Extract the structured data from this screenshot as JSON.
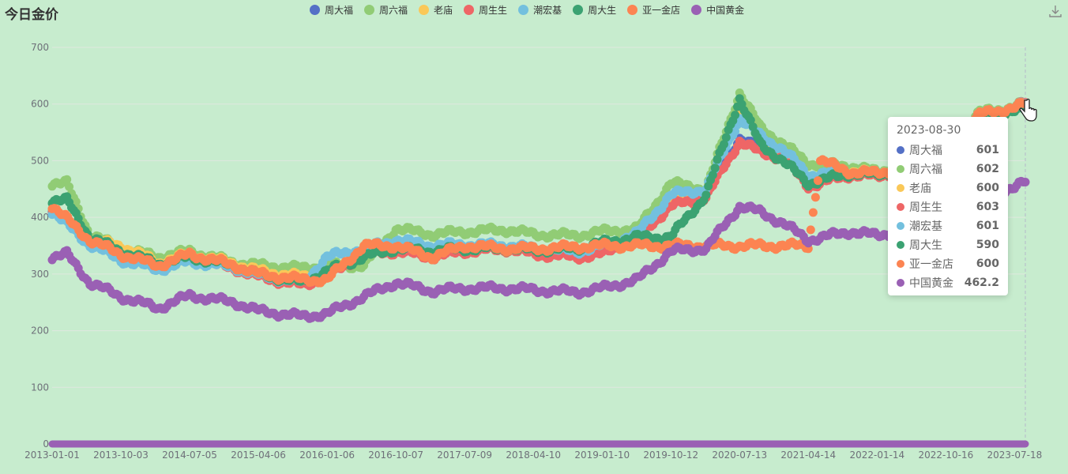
{
  "chart_data": {
    "type": "scatter",
    "title": "今日金价",
    "x_ticks": [
      "2013-01-01",
      "2013-10-03",
      "2014-07-05",
      "2015-04-06",
      "2016-01-06",
      "2016-10-07",
      "2017-07-09",
      "2018-04-10",
      "2019-01-10",
      "2019-10-12",
      "2020-07-13",
      "2021-04-14",
      "2022-01-14",
      "2022-10-16",
      "2023-07-18"
    ],
    "xlim": [
      "2013-01-01",
      "2023-08-30"
    ],
    "ylim": [
      0,
      700
    ],
    "y_ticks": [
      0,
      100,
      200,
      300,
      400,
      500,
      600,
      700
    ],
    "grid": true,
    "legend_position": "top",
    "series": [
      {
        "name": "周大福",
        "color": "#5470c6",
        "points": [
          [
            "2013-01-01",
            415
          ],
          [
            "2013-06-01",
            365
          ],
          [
            "2013-10-03",
            335
          ],
          [
            "2014-03-01",
            315
          ],
          [
            "2014-07-05",
            330
          ],
          [
            "2015-01-01",
            315
          ],
          [
            "2015-04-06",
            300
          ],
          [
            "2015-10-01",
            290
          ],
          [
            "2016-01-06",
            300
          ],
          [
            "2016-06-01",
            340
          ],
          [
            "2016-10-07",
            345
          ],
          [
            "2017-03-01",
            335
          ],
          [
            "2017-07-09",
            345
          ],
          [
            "2018-01-01",
            348
          ],
          [
            "2018-04-10",
            340
          ],
          [
            "2018-10-01",
            335
          ],
          [
            "2019-01-10",
            340
          ],
          [
            "2019-06-01",
            370
          ],
          [
            "2019-10-12",
            425
          ],
          [
            "2020-03-01",
            440
          ],
          [
            "2020-07-13",
            540
          ],
          [
            "2020-10-01",
            520
          ],
          [
            "2021-01-01",
            510
          ],
          [
            "2021-04-14",
            465
          ],
          [
            "2021-10-01",
            480
          ],
          [
            "2022-01-14",
            475
          ],
          [
            "2022-06-01",
            490
          ],
          [
            "2022-10-16",
            520
          ],
          [
            "2023-03-01",
            580
          ],
          [
            "2023-07-18",
            592
          ],
          [
            "2023-08-30",
            601
          ]
        ]
      },
      {
        "name": "周六福",
        "color": "#91cc75",
        "points": [
          [
            "2013-01-01",
            460
          ],
          [
            "2013-03-01",
            460
          ],
          [
            "2013-06-01",
            370
          ],
          [
            "2013-10-03",
            345
          ],
          [
            "2014-03-01",
            330
          ],
          [
            "2014-07-05",
            340
          ],
          [
            "2015-01-01",
            320
          ],
          [
            "2015-04-06",
            315
          ],
          [
            "2015-10-01",
            310
          ],
          [
            "2016-01-06",
            315
          ],
          [
            "2016-06-01",
            315
          ],
          [
            "2016-10-07",
            380
          ],
          [
            "2017-03-01",
            370
          ],
          [
            "2017-07-09",
            375
          ],
          [
            "2018-01-01",
            378
          ],
          [
            "2018-04-10",
            370
          ],
          [
            "2018-10-01",
            368
          ],
          [
            "2019-01-10",
            375
          ],
          [
            "2019-06-01",
            380
          ],
          [
            "2019-10-12",
            460
          ],
          [
            "2020-03-01",
            450
          ],
          [
            "2020-07-13",
            620
          ],
          [
            "2020-10-01",
            560
          ],
          [
            "2021-01-01",
            530
          ],
          [
            "2021-04-14",
            495
          ],
          [
            "2021-10-01",
            490
          ],
          [
            "2022-01-14",
            480
          ],
          [
            "2022-06-01",
            495
          ],
          [
            "2022-10-16",
            530
          ],
          [
            "2023-03-01",
            585
          ],
          [
            "2023-07-18",
            595
          ],
          [
            "2023-08-30",
            602
          ]
        ]
      },
      {
        "name": "老庙",
        "color": "#fac858",
        "points": [
          [
            "2013-01-01",
            420
          ],
          [
            "2013-06-01",
            360
          ],
          [
            "2013-10-03",
            350
          ],
          [
            "2014-03-01",
            320
          ],
          [
            "2014-07-05",
            335
          ],
          [
            "2015-01-01",
            318
          ],
          [
            "2015-04-06",
            305
          ],
          [
            "2015-10-01",
            295
          ],
          [
            "2016-01-06",
            300
          ],
          [
            "2016-06-01",
            340
          ],
          [
            "2016-10-07",
            350
          ],
          [
            "2017-03-01",
            338
          ],
          [
            "2017-07-09",
            350
          ],
          [
            "2018-01-01",
            350
          ],
          [
            "2018-04-10",
            342
          ],
          [
            "2018-10-01",
            338
          ],
          [
            "2019-01-10",
            345
          ],
          [
            "2019-06-01",
            372
          ],
          [
            "2019-10-12",
            430
          ],
          [
            "2020-03-01",
            445
          ],
          [
            "2020-07-13",
            590
          ],
          [
            "2020-10-01",
            540
          ],
          [
            "2021-01-01",
            515
          ],
          [
            "2021-04-14",
            470
          ],
          [
            "2021-10-01",
            482
          ],
          [
            "2022-01-14",
            478
          ],
          [
            "2022-06-01",
            492
          ],
          [
            "2022-10-16",
            522
          ],
          [
            "2023-03-01",
            582
          ],
          [
            "2023-07-18",
            594
          ],
          [
            "2023-08-30",
            600
          ]
        ]
      },
      {
        "name": "周生生",
        "color": "#ee6666",
        "points": [
          [
            "2013-01-01",
            412
          ],
          [
            "2013-06-01",
            355
          ],
          [
            "2013-10-03",
            330
          ],
          [
            "2014-03-01",
            310
          ],
          [
            "2014-07-05",
            325
          ],
          [
            "2015-01-01",
            310
          ],
          [
            "2015-04-06",
            295
          ],
          [
            "2015-10-01",
            280
          ],
          [
            "2016-01-06",
            295
          ],
          [
            "2016-06-01",
            335
          ],
          [
            "2016-10-07",
            340
          ],
          [
            "2017-03-01",
            330
          ],
          [
            "2017-07-09",
            340
          ],
          [
            "2018-01-01",
            344
          ],
          [
            "2018-04-10",
            335
          ],
          [
            "2018-10-01",
            330
          ],
          [
            "2019-01-10",
            335
          ],
          [
            "2019-06-01",
            365
          ],
          [
            "2019-10-12",
            420
          ],
          [
            "2020-03-01",
            435
          ],
          [
            "2020-07-13",
            535
          ],
          [
            "2020-10-01",
            515
          ],
          [
            "2021-01-01",
            505
          ],
          [
            "2021-04-14",
            455
          ],
          [
            "2021-10-01",
            475
          ],
          [
            "2022-01-14",
            472
          ],
          [
            "2022-06-01",
            488
          ],
          [
            "2022-10-16",
            518
          ],
          [
            "2023-03-01",
            580
          ],
          [
            "2023-07-18",
            593
          ],
          [
            "2023-08-30",
            603
          ]
        ]
      },
      {
        "name": "潮宏基",
        "color": "#73c0de",
        "points": [
          [
            "2013-01-01",
            410
          ],
          [
            "2013-06-01",
            352
          ],
          [
            "2013-10-03",
            325
          ],
          [
            "2014-03-01",
            308
          ],
          [
            "2014-07-05",
            322
          ],
          [
            "2015-01-01",
            312
          ],
          [
            "2015-04-06",
            298
          ],
          [
            "2015-10-01",
            285
          ],
          [
            "2016-01-06",
            330
          ],
          [
            "2016-06-01",
            345
          ],
          [
            "2016-10-07",
            360
          ],
          [
            "2017-03-01",
            350
          ],
          [
            "2017-07-09",
            352
          ],
          [
            "2018-01-01",
            350
          ],
          [
            "2018-04-10",
            345
          ],
          [
            "2018-10-01",
            340
          ],
          [
            "2019-01-10",
            350
          ],
          [
            "2019-06-01",
            372
          ],
          [
            "2019-10-12",
            440
          ],
          [
            "2020-03-01",
            450
          ],
          [
            "2020-07-13",
            575
          ],
          [
            "2020-10-01",
            545
          ],
          [
            "2021-01-01",
            520
          ],
          [
            "2021-04-14",
            475
          ],
          [
            "2021-10-01",
            480
          ],
          [
            "2022-01-14",
            478
          ],
          [
            "2022-06-01",
            490
          ],
          [
            "2022-10-16",
            520
          ],
          [
            "2023-03-01",
            582
          ],
          [
            "2023-07-18",
            594
          ],
          [
            "2023-08-30",
            601
          ]
        ]
      },
      {
        "name": "周大生",
        "color": "#3ba272",
        "points": [
          [
            "2013-01-01",
            430
          ],
          [
            "2013-03-01",
            430
          ],
          [
            "2013-06-01",
            365
          ],
          [
            "2013-10-03",
            340
          ],
          [
            "2014-03-01",
            318
          ],
          [
            "2014-07-05",
            330
          ],
          [
            "2015-01-01",
            315
          ],
          [
            "2015-04-06",
            300
          ],
          [
            "2015-10-01",
            285
          ],
          [
            "2016-01-06",
            305
          ],
          [
            "2016-06-01",
            330
          ],
          [
            "2016-10-07",
            345
          ],
          [
            "2017-03-01",
            340
          ],
          [
            "2017-07-09",
            345
          ],
          [
            "2018-01-01",
            345
          ],
          [
            "2018-04-10",
            342
          ],
          [
            "2018-10-01",
            345
          ],
          [
            "2019-01-10",
            355
          ],
          [
            "2019-06-01",
            365
          ],
          [
            "2019-10-12",
            365
          ],
          [
            "2020-03-01",
            440
          ],
          [
            "2020-07-13",
            610
          ],
          [
            "2020-10-01",
            530
          ],
          [
            "2021-01-01",
            500
          ],
          [
            "2021-04-14",
            460
          ],
          [
            "2021-10-01",
            478
          ],
          [
            "2022-01-14",
            475
          ],
          [
            "2022-06-01",
            490
          ],
          [
            "2022-10-16",
            520
          ],
          [
            "2023-03-01",
            580
          ],
          [
            "2023-07-18",
            588
          ],
          [
            "2023-08-30",
            590
          ]
        ]
      },
      {
        "name": "亚一金店",
        "color": "#fc8452",
        "points": [
          [
            "2013-01-01",
            420
          ],
          [
            "2013-06-01",
            360
          ],
          [
            "2013-10-03",
            335
          ],
          [
            "2014-03-01",
            315
          ],
          [
            "2014-07-05",
            335
          ],
          [
            "2015-01-01",
            315
          ],
          [
            "2015-04-06",
            300
          ],
          [
            "2015-10-01",
            290
          ],
          [
            "2016-01-06",
            290
          ],
          [
            "2016-06-01",
            350
          ],
          [
            "2016-10-07",
            350
          ],
          [
            "2017-03-01",
            330
          ],
          [
            "2017-07-09",
            350
          ],
          [
            "2018-01-01",
            345
          ],
          [
            "2018-04-10",
            345
          ],
          [
            "2018-10-01",
            348
          ],
          [
            "2019-01-10",
            350
          ],
          [
            "2019-06-01",
            350
          ],
          [
            "2019-10-12",
            350
          ],
          [
            "2020-03-01",
            350
          ],
          [
            "2020-07-13",
            350
          ],
          [
            "2021-01-01",
            350
          ],
          [
            "2021-04-14",
            350
          ],
          [
            "2021-06-01",
            500
          ],
          [
            "2021-10-01",
            480
          ],
          [
            "2022-01-14",
            478
          ],
          [
            "2022-06-01",
            490
          ],
          [
            "2022-10-16",
            520
          ],
          [
            "2023-03-01",
            582
          ],
          [
            "2023-07-18",
            594
          ],
          [
            "2023-08-30",
            600
          ]
        ]
      },
      {
        "name": "中国黄金",
        "color": "#9a60b4",
        "points": [
          [
            "2013-01-01",
            330
          ],
          [
            "2013-03-01",
            335
          ],
          [
            "2013-06-01",
            285
          ],
          [
            "2013-10-03",
            260
          ],
          [
            "2014-03-01",
            240
          ],
          [
            "2014-07-05",
            262
          ],
          [
            "2015-01-01",
            250
          ],
          [
            "2015-04-06",
            235
          ],
          [
            "2015-10-01",
            225
          ],
          [
            "2016-01-06",
            230
          ],
          [
            "2016-06-01",
            260
          ],
          [
            "2016-10-07",
            285
          ],
          [
            "2017-03-01",
            270
          ],
          [
            "2017-07-09",
            275
          ],
          [
            "2018-01-01",
            275
          ],
          [
            "2018-04-10",
            272
          ],
          [
            "2018-10-01",
            268
          ],
          [
            "2019-01-10",
            275
          ],
          [
            "2019-06-01",
            290
          ],
          [
            "2019-10-12",
            340
          ],
          [
            "2020-03-01",
            345
          ],
          [
            "2020-07-13",
            420
          ],
          [
            "2020-10-01",
            410
          ],
          [
            "2021-01-01",
            390
          ],
          [
            "2021-04-14",
            360
          ],
          [
            "2021-10-01",
            375
          ],
          [
            "2022-01-14",
            368
          ],
          [
            "2022-06-01",
            380
          ],
          [
            "2022-10-16",
            410
          ],
          [
            "2023-03-01",
            440
          ],
          [
            "2023-07-18",
            452
          ],
          [
            "2023-08-30",
            462.2
          ]
        ]
      }
    ],
    "tooltip": {
      "date": "2023-08-30",
      "values": [
        601,
        602,
        600,
        603,
        601,
        590,
        600,
        462.2
      ]
    }
  }
}
